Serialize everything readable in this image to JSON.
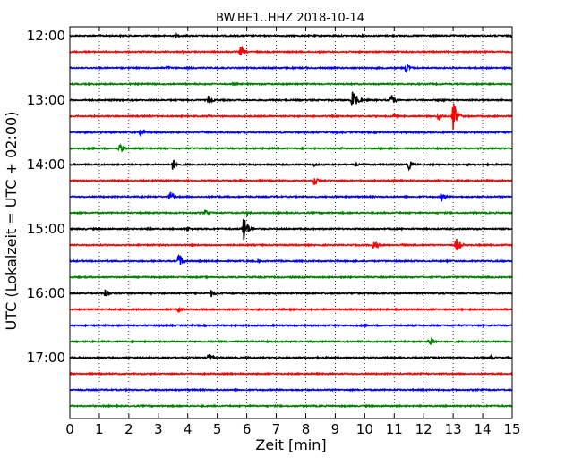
{
  "chart_data": {
    "type": "line",
    "title": "BW.BE1..HHZ 2018-10-14",
    "xlabel": "Zeit  [min]",
    "ylabel": "UTC (Lokalzeit = UTC + 02:00)",
    "xlim": [
      0,
      15
    ],
    "x_ticks": [
      "0",
      "1",
      "2",
      "3",
      "4",
      "5",
      "6",
      "7",
      "8",
      "9",
      "10",
      "11",
      "12",
      "13",
      "14",
      "15"
    ],
    "y_ticks": [
      "12:00",
      "13:00",
      "14:00",
      "15:00",
      "16:00",
      "17:00"
    ],
    "grid": "x dotted",
    "row_colors": [
      "#000000",
      "#ff0000",
      "#0000ff",
      "#008000"
    ],
    "series": [
      {
        "start": "12:00",
        "color": "#000000",
        "events": [
          {
            "t": 2.1,
            "amp": 0.12
          },
          {
            "t": 3.6,
            "amp": 0.18
          },
          {
            "t": 13.4,
            "amp": 0.12
          },
          {
            "t": 15.0,
            "amp": 0.25
          }
        ]
      },
      {
        "start": "12:15",
        "color": "#ff0000",
        "events": [
          {
            "t": 5.8,
            "amp": 0.7
          },
          {
            "t": 3.8,
            "amp": 0.15
          },
          {
            "t": 14.0,
            "amp": 0.15
          }
        ]
      },
      {
        "start": "12:30",
        "color": "#0000ff",
        "events": [
          {
            "t": 3.3,
            "amp": 0.25
          },
          {
            "t": 11.4,
            "amp": 0.65
          },
          {
            "t": 8.0,
            "amp": 0.12
          }
        ]
      },
      {
        "start": "12:45",
        "color": "#008000",
        "events": [
          {
            "t": 14.0,
            "amp": 0.12
          },
          {
            "t": 8.5,
            "amp": 0.1
          }
        ]
      },
      {
        "start": "13:00",
        "color": "#000000",
        "events": [
          {
            "t": 4.7,
            "amp": 0.5
          },
          {
            "t": 9.6,
            "amp": 1.5
          },
          {
            "t": 10.9,
            "amp": 0.7
          },
          {
            "t": 12.6,
            "amp": 0.2
          }
        ]
      },
      {
        "start": "13:15",
        "color": "#ff0000",
        "events": [
          {
            "t": 13.0,
            "amp": 1.8
          },
          {
            "t": 12.5,
            "amp": 0.5
          },
          {
            "t": 11.0,
            "amp": 0.25
          },
          {
            "t": 4.7,
            "amp": 0.15
          }
        ]
      },
      {
        "start": "13:30",
        "color": "#0000ff",
        "events": [
          {
            "t": 2.4,
            "amp": 0.45
          },
          {
            "t": 4.5,
            "amp": 0.12
          },
          {
            "t": 12.2,
            "amp": 0.1
          }
        ]
      },
      {
        "start": "13:45",
        "color": "#008000",
        "events": [
          {
            "t": 1.7,
            "amp": 0.65
          },
          {
            "t": 9.2,
            "amp": 0.15
          },
          {
            "t": 10.5,
            "amp": 0.15
          }
        ]
      },
      {
        "start": "14:00",
        "color": "#000000",
        "events": [
          {
            "t": 3.5,
            "amp": 0.7
          },
          {
            "t": 8.3,
            "amp": 0.2
          },
          {
            "t": 9.7,
            "amp": 0.2
          },
          {
            "t": 11.5,
            "amp": 0.55
          },
          {
            "t": 13.5,
            "amp": 0.12
          }
        ]
      },
      {
        "start": "14:15",
        "color": "#ff0000",
        "events": [
          {
            "t": 8.3,
            "amp": 0.6
          },
          {
            "t": 4.0,
            "amp": 0.12
          },
          {
            "t": 11.0,
            "amp": 0.12
          }
        ]
      },
      {
        "start": "14:30",
        "color": "#0000ff",
        "events": [
          {
            "t": 3.4,
            "amp": 0.6
          },
          {
            "t": 12.6,
            "amp": 0.55
          },
          {
            "t": 5.0,
            "amp": 0.12
          }
        ]
      },
      {
        "start": "14:45",
        "color": "#008000",
        "events": [
          {
            "t": 4.6,
            "amp": 0.4
          },
          {
            "t": 6.0,
            "amp": 0.35
          },
          {
            "t": 3.0,
            "amp": 0.12
          },
          {
            "t": 8.8,
            "amp": 0.12
          }
        ]
      },
      {
        "start": "15:00",
        "color": "#000000",
        "events": [
          {
            "t": 5.9,
            "amp": 1.7
          },
          {
            "t": 4.0,
            "amp": 0.3
          },
          {
            "t": 2.7,
            "amp": 0.2
          },
          {
            "t": 0.5,
            "amp": 0.12
          }
        ]
      },
      {
        "start": "15:15",
        "color": "#ff0000",
        "events": [
          {
            "t": 10.3,
            "amp": 0.65
          },
          {
            "t": 13.1,
            "amp": 0.9
          },
          {
            "t": 11.3,
            "amp": 0.2
          }
        ]
      },
      {
        "start": "15:30",
        "color": "#0000ff",
        "events": [
          {
            "t": 3.7,
            "amp": 0.9
          },
          {
            "t": 6.4,
            "amp": 0.15
          },
          {
            "t": 13.0,
            "amp": 0.1
          }
        ]
      },
      {
        "start": "15:45",
        "color": "#008000",
        "events": [
          {
            "t": 7.5,
            "amp": 0.12
          },
          {
            "t": 12.5,
            "amp": 0.1
          }
        ]
      },
      {
        "start": "16:00",
        "color": "#000000",
        "events": [
          {
            "t": 1.2,
            "amp": 0.5
          },
          {
            "t": 4.8,
            "amp": 0.45
          },
          {
            "t": 2.8,
            "amp": 0.12
          },
          {
            "t": 8.0,
            "amp": 0.1
          }
        ]
      },
      {
        "start": "16:15",
        "color": "#ff0000",
        "events": [
          {
            "t": 3.7,
            "amp": 0.4
          },
          {
            "t": 12.0,
            "amp": 0.1
          }
        ]
      },
      {
        "start": "16:30",
        "color": "#0000ff",
        "events": [
          {
            "t": 3.0,
            "amp": 0.1
          },
          {
            "t": 10.0,
            "amp": 0.1
          }
        ]
      },
      {
        "start": "16:45",
        "color": "#008000",
        "events": [
          {
            "t": 12.2,
            "amp": 0.8
          },
          {
            "t": 5.0,
            "amp": 0.1
          }
        ]
      },
      {
        "start": "17:00",
        "color": "#000000",
        "events": [
          {
            "t": 4.7,
            "amp": 0.6
          },
          {
            "t": 14.3,
            "amp": 0.25
          },
          {
            "t": 11.0,
            "amp": 0.1
          }
        ]
      },
      {
        "start": "17:15",
        "color": "#ff0000",
        "events": []
      },
      {
        "start": "17:30",
        "color": "#0000ff",
        "events": []
      },
      {
        "start": "17:45",
        "color": "#008000",
        "events": [
          {
            "t": 9.0,
            "amp": 0.08
          }
        ]
      }
    ]
  }
}
